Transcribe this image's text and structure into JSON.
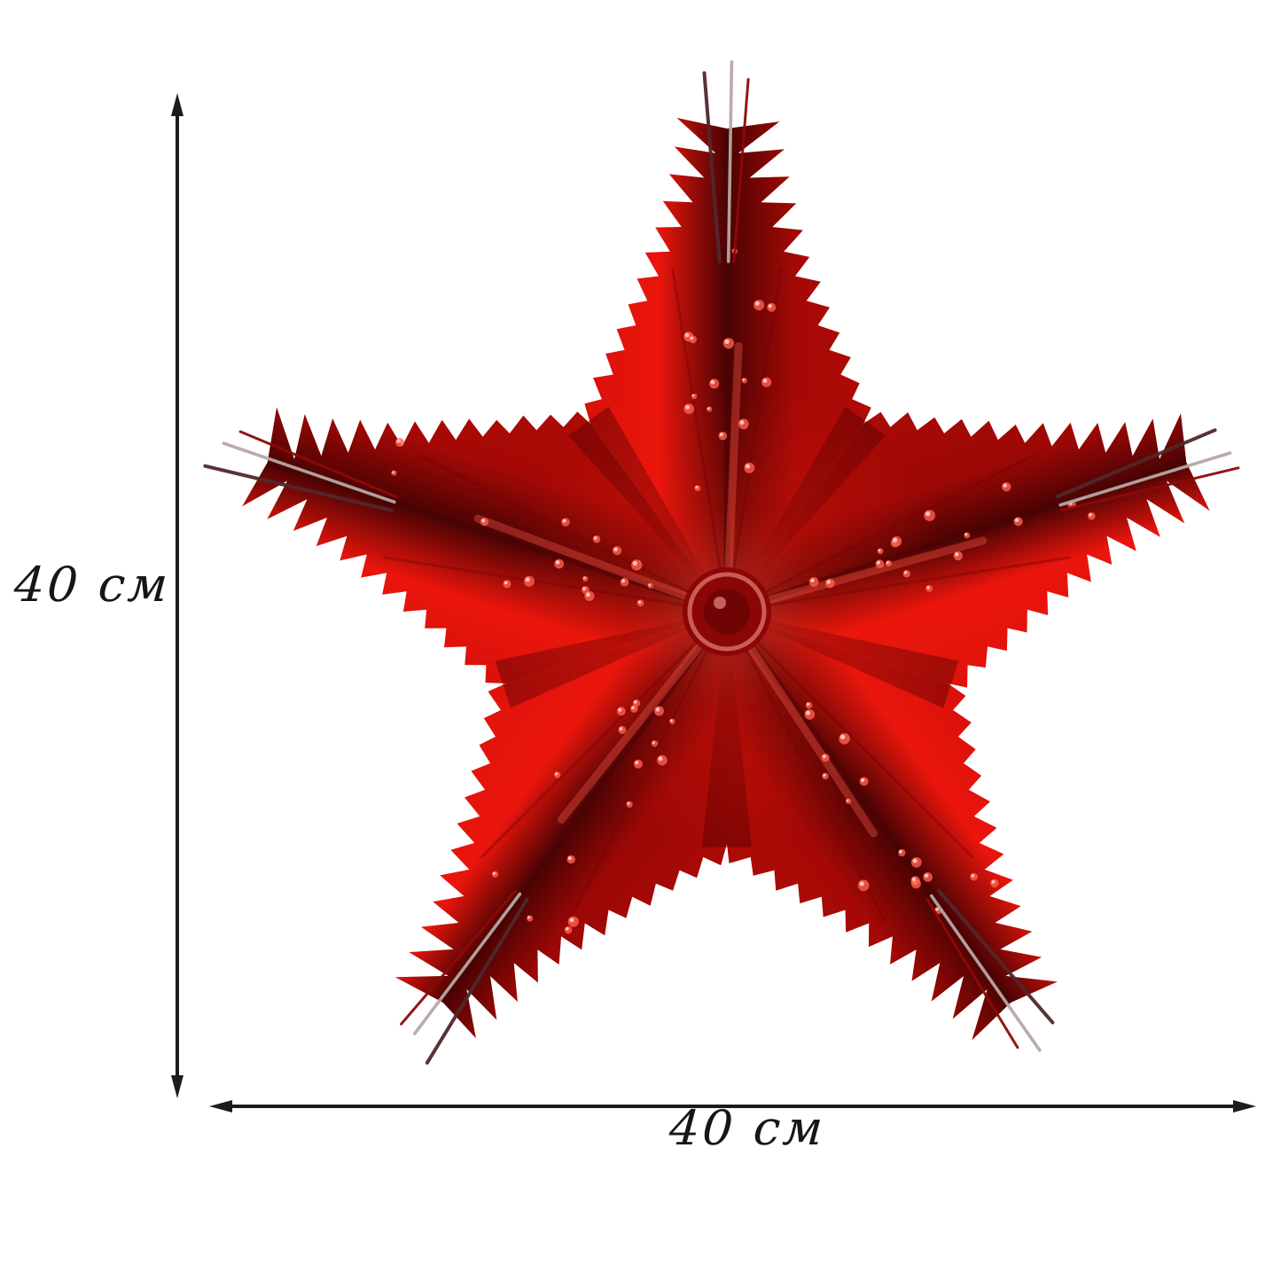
{
  "page": {
    "description": "Product dimension diagram of a red metallic foil five-point star decoration on white background",
    "background": "#ffffff"
  },
  "dimensions": {
    "height": {
      "label": "40 см"
    },
    "width": {
      "label": "40 см"
    }
  },
  "annotation": {
    "line_color": "#1c1c1c"
  },
  "star": {
    "name": "red-foil-pleated-star",
    "points": 5,
    "colors": {
      "bright_red": "#ea150c",
      "mid_red": "#c10d07",
      "deep_red": "#8e0605",
      "crease_dark": "#4a0303",
      "highlight": "#ff5f4e",
      "fringe_silver": "#b7a8a5",
      "fringe_dark": "#52282b",
      "grommet_rim": "#d0675c",
      "grommet_hole": "#700404"
    }
  }
}
